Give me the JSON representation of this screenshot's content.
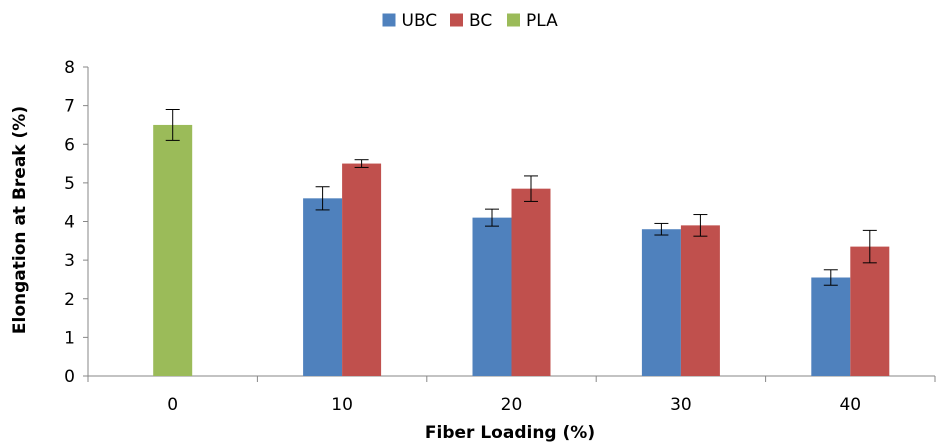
{
  "chart_data": {
    "type": "bar",
    "xlabel": "Fiber Loading (%)",
    "ylabel": "Elongation at Break (%)",
    "categories": [
      "0",
      "10",
      "20",
      "30",
      "40"
    ],
    "ylim": [
      0,
      8
    ],
    "yticks": [
      "0",
      "1",
      "2",
      "3",
      "4",
      "5",
      "6",
      "7",
      "8"
    ],
    "grid": false,
    "legend_position": "top-center",
    "series": [
      {
        "name": "UBC",
        "color": "#4f81bd",
        "values": [
          null,
          4.6,
          4.1,
          3.8,
          2.55
        ],
        "errors": [
          null,
          0.3,
          0.22,
          0.15,
          0.2
        ]
      },
      {
        "name": "BC",
        "color": "#c0504d",
        "values": [
          null,
          5.5,
          4.85,
          3.9,
          3.35
        ],
        "errors": [
          null,
          0.1,
          0.33,
          0.28,
          0.42
        ]
      },
      {
        "name": "PLA",
        "color": "#9bbb59",
        "values": [
          6.5,
          null,
          null,
          null,
          null
        ],
        "errors": [
          0.4,
          null,
          null,
          null,
          null
        ]
      }
    ]
  }
}
